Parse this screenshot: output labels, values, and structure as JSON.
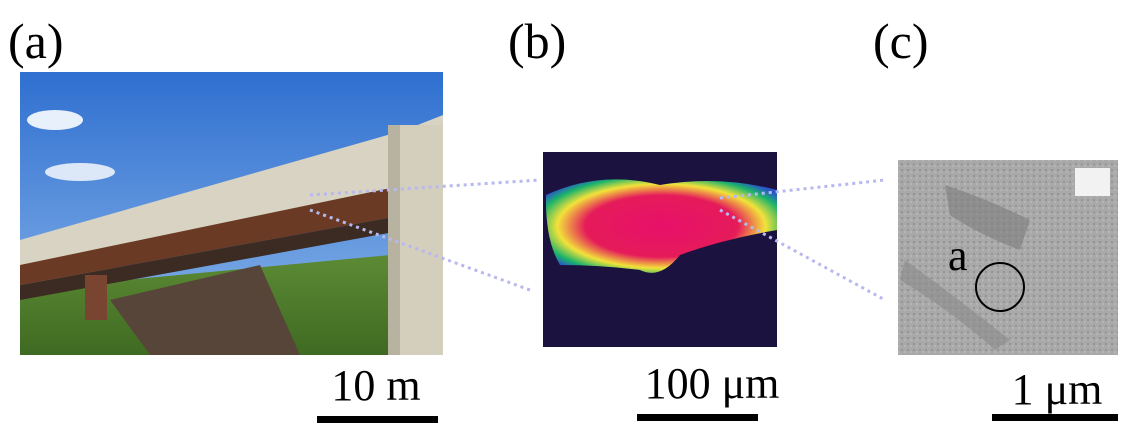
{
  "panels": [
    {
      "label": "(a)",
      "scale": "10 m"
    },
    {
      "label": "(b)",
      "scale": "100 μm"
    },
    {
      "label": "(c)",
      "scale": "1 μm",
      "marker": "a"
    }
  ]
}
